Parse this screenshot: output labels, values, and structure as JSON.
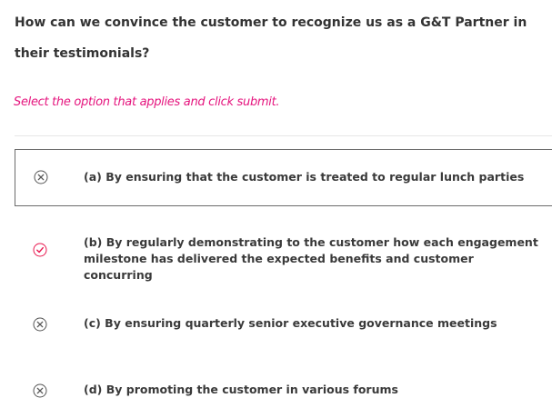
{
  "question": {
    "text": "How can we convince the customer to recognize us as a G&T Partner in their testimonials?"
  },
  "instruction": {
    "text": "Select the option that applies and click submit."
  },
  "options": [
    {
      "label": "(a) By ensuring that the customer is treated to regular lunch parties",
      "status": "incorrect",
      "icon": "cross-circle-icon",
      "selected": true
    },
    {
      "label": "(b) By regularly demonstrating to the customer how each engagement milestone has delivered the expected benefits and customer concurring",
      "status": "correct",
      "icon": "check-circle-icon",
      "selected": false
    },
    {
      "label": "(c) By ensuring quarterly senior executive governance meetings",
      "status": "incorrect",
      "icon": "cross-circle-icon",
      "selected": false
    },
    {
      "label": "(d) By promoting the customer in various forums",
      "status": "incorrect",
      "icon": "cross-circle-icon",
      "selected": false
    }
  ],
  "colors": {
    "accent": "#e5157e",
    "cross_icon": "#555555",
    "check_icon": "#e8174f",
    "question_text": "#333333",
    "option_text": "#3a3a3a",
    "divider": "#e6e6e6",
    "selected_border": "#6b6b6b"
  }
}
